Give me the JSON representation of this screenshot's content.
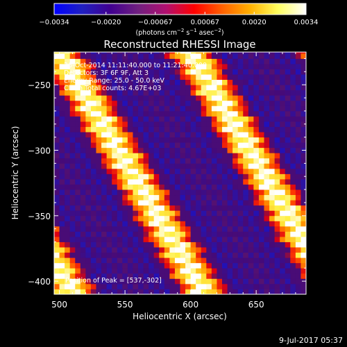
{
  "chart_data": {
    "type": "heatmap",
    "title": "Reconstructed RHESSI Image",
    "xlabel": "Heliocentric X (arcsec)",
    "ylabel": "Heliocentric Y (arcsec)",
    "xlim": [
      496,
      688
    ],
    "ylim": [
      -410,
      -225
    ],
    "x_ticks": [
      {
        "value": 500,
        "label": "500"
      },
      {
        "value": 550,
        "label": "550"
      },
      {
        "value": 600,
        "label": "600"
      },
      {
        "value": 650,
        "label": "650"
      }
    ],
    "y_ticks": [
      {
        "value": -250,
        "label": "−250"
      },
      {
        "value": -300,
        "label": "−300"
      },
      {
        "value": -350,
        "label": "−350"
      },
      {
        "value": -400,
        "label": "−400"
      }
    ],
    "colorbar": {
      "range": [
        -0.0034,
        0.0034
      ],
      "ticks": [
        {
          "value": -0.0034,
          "label": "−0.0034"
        },
        {
          "value": -0.002,
          "label": "−0.0020"
        },
        {
          "value": -0.00067,
          "label": "−0.00067"
        },
        {
          "value": 0.00067,
          "label": "0.00067"
        },
        {
          "value": 0.002,
          "label": "0.0020"
        },
        {
          "value": 0.0034,
          "label": "0.0034"
        }
      ],
      "unit_main": "(photons cm",
      "unit_exp1": "−2",
      "unit_mid": " s",
      "unit_exp2": "−1",
      "unit_end": " asec",
      "unit_exp3": "−2",
      "unit_close": ")",
      "colors": [
        "#0000ff",
        "#2020c0",
        "#400090",
        "#702080",
        "#b01070",
        "#ff0000",
        "#ff6000",
        "#ffb000",
        "#ffff60",
        "#ffffff"
      ]
    },
    "stripe_model": {
      "period_x": 100,
      "offsets": [
        -18,
        82,
        182,
        282
      ],
      "slope_dx_per_dy": -0.6,
      "zigzag_amplitude": 2.2,
      "zigzag_period_y": 14
    },
    "annotations": [
      "26-Oct-2014 11:11:40.000 to 11:21:40.000",
      "Detectors: 3F 6F 9F, Att 3",
      "Energy Range: 25.0 - 50.0 keV",
      "Clean    Total counts: 4.67E+03"
    ],
    "peak_label": "Position of Peak = [537,-302]",
    "footer_date": "9-Jul-2017 05:37"
  }
}
